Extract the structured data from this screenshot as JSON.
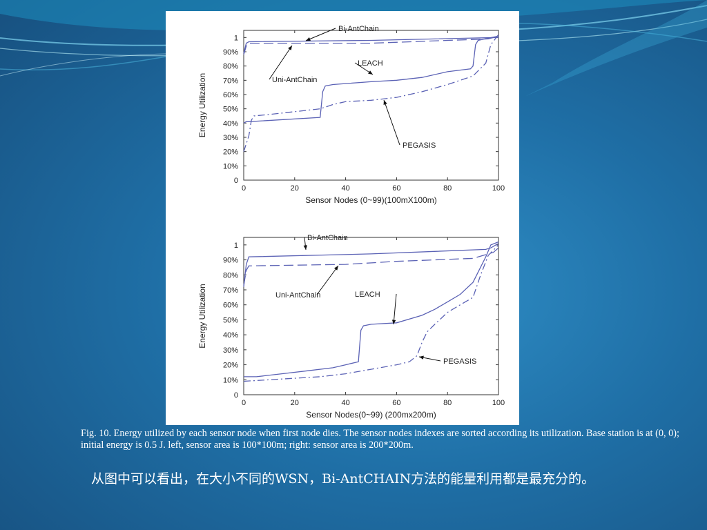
{
  "colors": {
    "accent_line": "#5b62b5",
    "background": "#1f6fa6"
  },
  "caption": "Fig. 10. Energy utilized by each sensor node when first node dies. The sensor nodes indexes are sorted according its utilization. Base station is at (0, 0); initial energy is 0.5 J. left, sensor area is 100*100m; right: sensor area is 200*200m.",
  "note": "从图中可以看出，在大小不同的WSN，Bi-AntCHAIN方法的能量利用都是最充分的。",
  "chart_data": [
    {
      "type": "line",
      "xlabel": "Sensor Nodes (0~99)(100mX100m)",
      "ylabel": "Energy Utilization",
      "xlim": [
        0,
        100
      ],
      "ylim": [
        0,
        1.05
      ],
      "xticks": [
        "0",
        "20",
        "40",
        "60",
        "80",
        "100"
      ],
      "yticks": [
        "0",
        "10%",
        "20%",
        "30%",
        "40%",
        "50%",
        "60%",
        "70%",
        "80%",
        "90%",
        "1"
      ],
      "grid": false,
      "series": [
        {
          "name": "Bi-AntChain",
          "style": "solid",
          "x": [
            0,
            1,
            2,
            50,
            100
          ],
          "y": [
            0.89,
            0.96,
            0.97,
            0.98,
            1.0
          ]
        },
        {
          "name": "Uni-AntChain",
          "style": "dashed",
          "x": [
            0,
            1,
            2,
            50,
            96,
            100
          ],
          "y": [
            0.88,
            0.94,
            0.96,
            0.96,
            0.99,
            1.01
          ]
        },
        {
          "name": "LEACH",
          "style": "solid",
          "x": [
            0,
            1,
            2,
            30,
            31,
            32,
            35,
            50,
            60,
            70,
            80,
            89,
            90,
            91,
            92,
            100
          ],
          "y": [
            0.4,
            0.41,
            0.41,
            0.44,
            0.62,
            0.66,
            0.67,
            0.69,
            0.7,
            0.72,
            0.76,
            0.78,
            0.8,
            0.95,
            0.98,
            1.01
          ]
        },
        {
          "name": "PEGASIS",
          "style": "dashdot",
          "x": [
            0,
            2,
            3,
            4,
            10,
            20,
            30,
            35,
            40,
            50,
            60,
            70,
            80,
            90,
            95,
            97,
            100
          ],
          "y": [
            0.2,
            0.31,
            0.42,
            0.45,
            0.46,
            0.48,
            0.5,
            0.53,
            0.55,
            0.56,
            0.58,
            0.62,
            0.67,
            0.73,
            0.82,
            0.95,
            1.02
          ]
        }
      ],
      "annotations": [
        "Bi-AntChain",
        "Uni-AntChain",
        "LEACH",
        "PEGASIS"
      ]
    },
    {
      "type": "line",
      "xlabel": "Sensor Nodes(0~99) (200mx200m)",
      "ylabel": "Energy Utilization",
      "xlim": [
        0,
        100
      ],
      "ylim": [
        0,
        1.05
      ],
      "xticks": [
        "0",
        "20",
        "40",
        "60",
        "80",
        "100"
      ],
      "yticks": [
        "0",
        "10%",
        "20%",
        "30%",
        "40%",
        "50%",
        "60%",
        "70%",
        "80%",
        "90%",
        "1"
      ],
      "grid": false,
      "series": [
        {
          "name": "Bi-AntChain",
          "style": "solid",
          "x": [
            0,
            1,
            2,
            50,
            95,
            97,
            100
          ],
          "y": [
            0.72,
            0.87,
            0.92,
            0.94,
            0.97,
            0.98,
            1.01
          ]
        },
        {
          "name": "Uni-AntChain",
          "style": "dashed",
          "x": [
            0,
            1,
            2,
            40,
            60,
            90,
            98,
            100
          ],
          "y": [
            0.73,
            0.83,
            0.86,
            0.87,
            0.89,
            0.91,
            0.95,
            0.98
          ]
        },
        {
          "name": "LEACH",
          "style": "solid",
          "x": [
            0,
            5,
            15,
            25,
            35,
            40,
            45,
            46,
            47,
            50,
            60,
            70,
            75,
            80,
            85,
            90,
            95,
            97,
            100
          ],
          "y": [
            0.12,
            0.12,
            0.14,
            0.16,
            0.18,
            0.2,
            0.22,
            0.43,
            0.46,
            0.47,
            0.48,
            0.53,
            0.57,
            0.62,
            0.67,
            0.75,
            0.92,
            1.0,
            1.02
          ]
        },
        {
          "name": "PEGASIS",
          "style": "dashdot",
          "x": [
            0,
            10,
            20,
            30,
            40,
            50,
            60,
            65,
            68,
            70,
            72,
            75,
            80,
            85,
            90,
            93,
            96,
            100
          ],
          "y": [
            0.09,
            0.1,
            0.11,
            0.12,
            0.14,
            0.17,
            0.2,
            0.22,
            0.26,
            0.35,
            0.42,
            0.47,
            0.55,
            0.6,
            0.65,
            0.8,
            0.93,
            1.0
          ]
        }
      ],
      "annotations": [
        "Bi-AntChain",
        "Uni-AntChain",
        "LEACH",
        "PEGASIS"
      ]
    }
  ]
}
